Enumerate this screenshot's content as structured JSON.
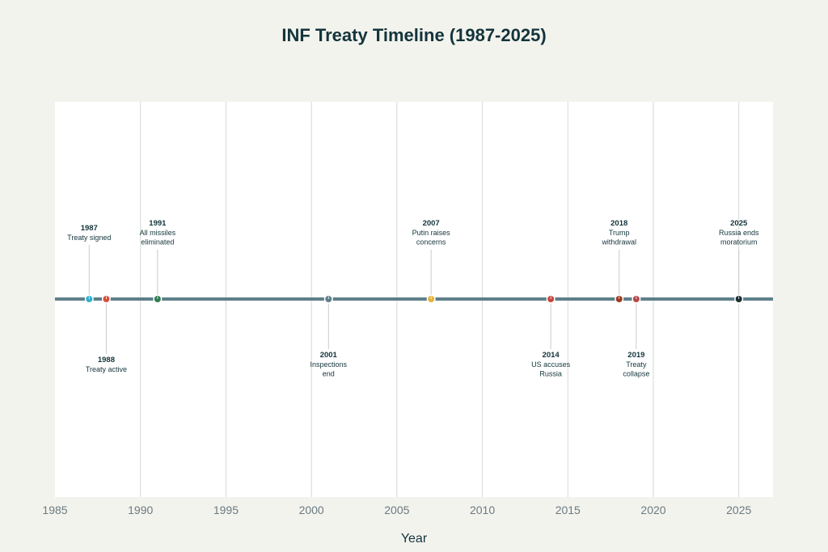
{
  "chart_data": {
    "type": "scatter",
    "title": "INF Treaty Timeline (1987-2025)",
    "xlabel": "Year",
    "ylabel": "",
    "xlim": [
      1985,
      2027
    ],
    "x_ticks": [
      1985,
      1990,
      1995,
      2000,
      2005,
      2010,
      2015,
      2020,
      2025
    ],
    "grid": "vertical",
    "events": [
      {
        "year": 1987,
        "label_year": "1987",
        "lines": [
          "Treaty signed"
        ],
        "side": "above",
        "color": "#2fb2cf"
      },
      {
        "year": 1988,
        "label_year": "1988",
        "lines": [
          "Treaty active"
        ],
        "side": "below",
        "color": "#d9503f"
      },
      {
        "year": 1991,
        "label_year": "1991",
        "lines": [
          "All missiles",
          "eliminated"
        ],
        "side": "above",
        "color": "#2f7d4f"
      },
      {
        "year": 2001,
        "label_year": "2001",
        "lines": [
          "Inspections",
          "end"
        ],
        "side": "below",
        "color": "#5e8089"
      },
      {
        "year": 2007,
        "label_year": "2007",
        "lines": [
          "Putin raises",
          "concerns"
        ],
        "side": "above",
        "color": "#e3b33c"
      },
      {
        "year": 2014,
        "label_year": "2014",
        "lines": [
          "US accuses",
          "Russia"
        ],
        "side": "below",
        "color": "#c8463a"
      },
      {
        "year": 2018,
        "label_year": "2018",
        "lines": [
          "Trump",
          "withdrawal"
        ],
        "side": "above",
        "color": "#9a3c22"
      },
      {
        "year": 2019,
        "label_year": "2019",
        "lines": [
          "Treaty",
          "collapse"
        ],
        "side": "below",
        "color": "#b34a4a"
      },
      {
        "year": 2025,
        "label_year": "2025",
        "lines": [
          "Russia ends",
          "moratorium"
        ],
        "side": "above",
        "color": "#1b2f33"
      }
    ]
  }
}
